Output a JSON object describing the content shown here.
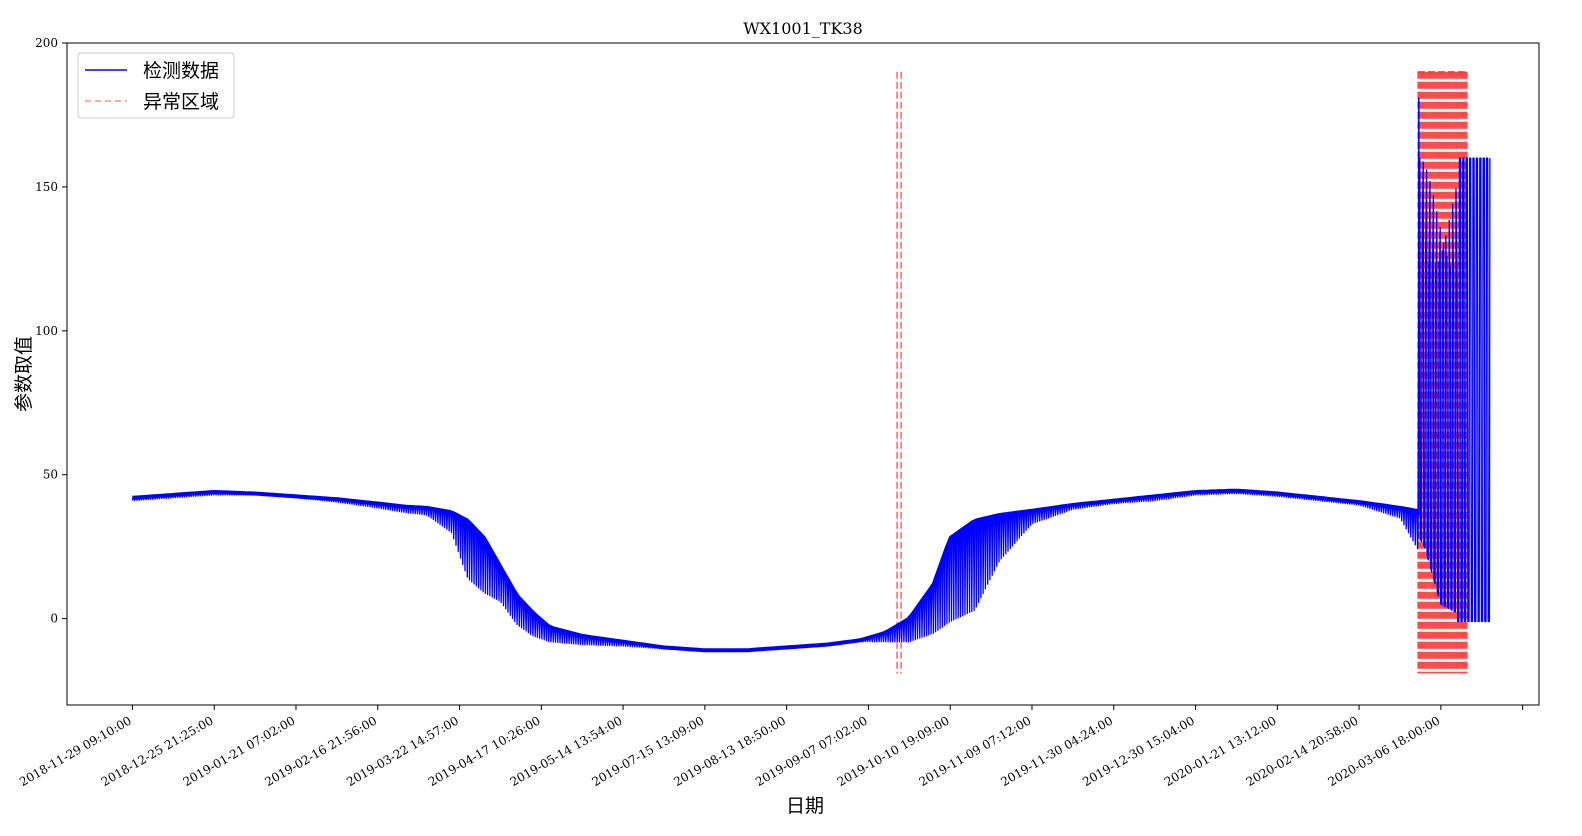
{
  "chart_data": {
    "type": "line",
    "title": "WX1001_TK38",
    "xlabel": "日期",
    "ylabel": "参数取值",
    "ylim": [
      -30,
      200
    ],
    "y_ticks": [
      0,
      50,
      100,
      150,
      200
    ],
    "x_tick_labels": [
      "2018-11-29 09:10:00",
      "2018-12-25 21:25:00",
      "2019-01-21 07:02:00",
      "2019-02-16 21:56:00",
      "2019-03-22 14:57:00",
      "2019-04-17 10:26:00",
      "2019-05-14 13:54:00",
      "2019-07-15 13:09:00",
      "2019-08-13 18:50:00",
      "2019-09-07 07:02:00",
      "2019-10-10 19:09:00",
      "2019-11-09 07:12:00",
      "2019-11-30 04:24:00",
      "2019-12-30 15:04:00",
      "2020-01-21 13:12:00",
      "2020-02-14 20:58:00",
      "2020-03-06 18:00:00"
    ],
    "x_index_range": [
      -0.8,
      17.2
    ],
    "grid": false,
    "legend_position": "upper-left",
    "series": [
      {
        "name": "检测数据",
        "color": "#0000ff",
        "style": "solid",
        "x": [
          0,
          0.5,
          1,
          1.5,
          2,
          2.5,
          3,
          3.3,
          3.6,
          3.9,
          4.1,
          4.3,
          4.5,
          4.7,
          4.9,
          5.1,
          5.5,
          6,
          6.5,
          7,
          7.5,
          8,
          8.5,
          8.9,
          9.2,
          9.5,
          9.8,
          10.0,
          10.3,
          10.6,
          11,
          11.5,
          12,
          12.5,
          13,
          13.5,
          14,
          14.5,
          15,
          15.5,
          15.8,
          16.0,
          16.2,
          16.4,
          16.6
        ],
        "base": [
          42,
          43,
          44,
          43.5,
          42.5,
          41.5,
          40,
          39,
          38.5,
          37,
          34,
          28,
          18,
          8,
          2,
          -3,
          -6,
          -8,
          -10,
          -11,
          -11,
          -10,
          -9,
          -7.5,
          -5,
          0,
          12,
          28,
          34,
          36,
          37.5,
          39.5,
          41,
          42.5,
          44,
          44.5,
          43.5,
          42,
          40.5,
          38.5,
          37,
          34,
          30,
          26,
          25
        ],
        "low": [
          41,
          42,
          43,
          43,
          42,
          40.5,
          38.5,
          37,
          36,
          30,
          14,
          9,
          6,
          -2,
          -6,
          -8,
          -9,
          -9.5,
          -10.5,
          -11,
          -11,
          -10.5,
          -9.5,
          -8,
          -8,
          -8,
          -5,
          -1,
          3,
          20,
          33,
          38,
          40,
          41,
          43,
          43.5,
          42.5,
          41,
          39.5,
          35,
          20,
          0,
          -3,
          -3,
          -3
        ]
      },
      {
        "name": "异常区域",
        "color": "#ff0000",
        "style": "dashed",
        "y_range": [
          -19,
          190
        ],
        "spans": [
          {
            "x": 9.35,
            "count": 2,
            "width": 0.05
          },
          {
            "x": 15.72,
            "count": 48,
            "width": 0.6
          }
        ]
      }
    ]
  }
}
